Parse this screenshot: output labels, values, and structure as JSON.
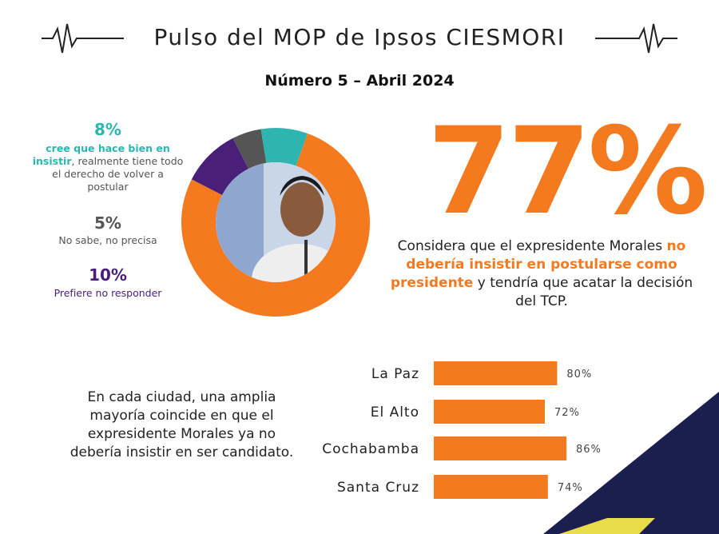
{
  "header": {
    "title": "Pulso del MOP de Ipsos CIESMORI",
    "subtitle": "Número 5 – Abril 2024"
  },
  "chart_data": [
    {
      "type": "donut",
      "values": [
        77,
        8,
        5,
        10
      ],
      "value_labels": [
        "77%",
        "8%",
        "5%",
        "10%"
      ],
      "colors": [
        "#f57a1f",
        "#2fb5b0",
        "#555555",
        "#4a1f7a"
      ]
    },
    {
      "type": "bar",
      "categories": [
        "La Paz",
        "El Alto",
        "Cochabamba",
        "Santa Cruz"
      ],
      "values": [
        80,
        72,
        86,
        74
      ],
      "value_labels": [
        "80%",
        "72%",
        "86%",
        "74%"
      ],
      "color": "#f57a1f",
      "xlim": [
        0,
        100
      ]
    }
  ],
  "callouts": {
    "main": {
      "before": "Considera que el expresidente Morales",
      "emphasis": "no debería insistir en postularse como presidente",
      "after": "y tendría que acatar la decisión del TCP."
    },
    "minor": [
      {
        "emphasis": "cree que hace bien en insistir",
        "rest": ", realmente tiene todo el derecho de volver a postular"
      },
      {
        "rest": "No sabe, no precisa"
      },
      {
        "rest": "Prefiere no responder"
      }
    ]
  },
  "note": "En cada ciudad, una amplia mayoría coincide en que el expresidente Morales ya no debería insistir en ser candidato."
}
